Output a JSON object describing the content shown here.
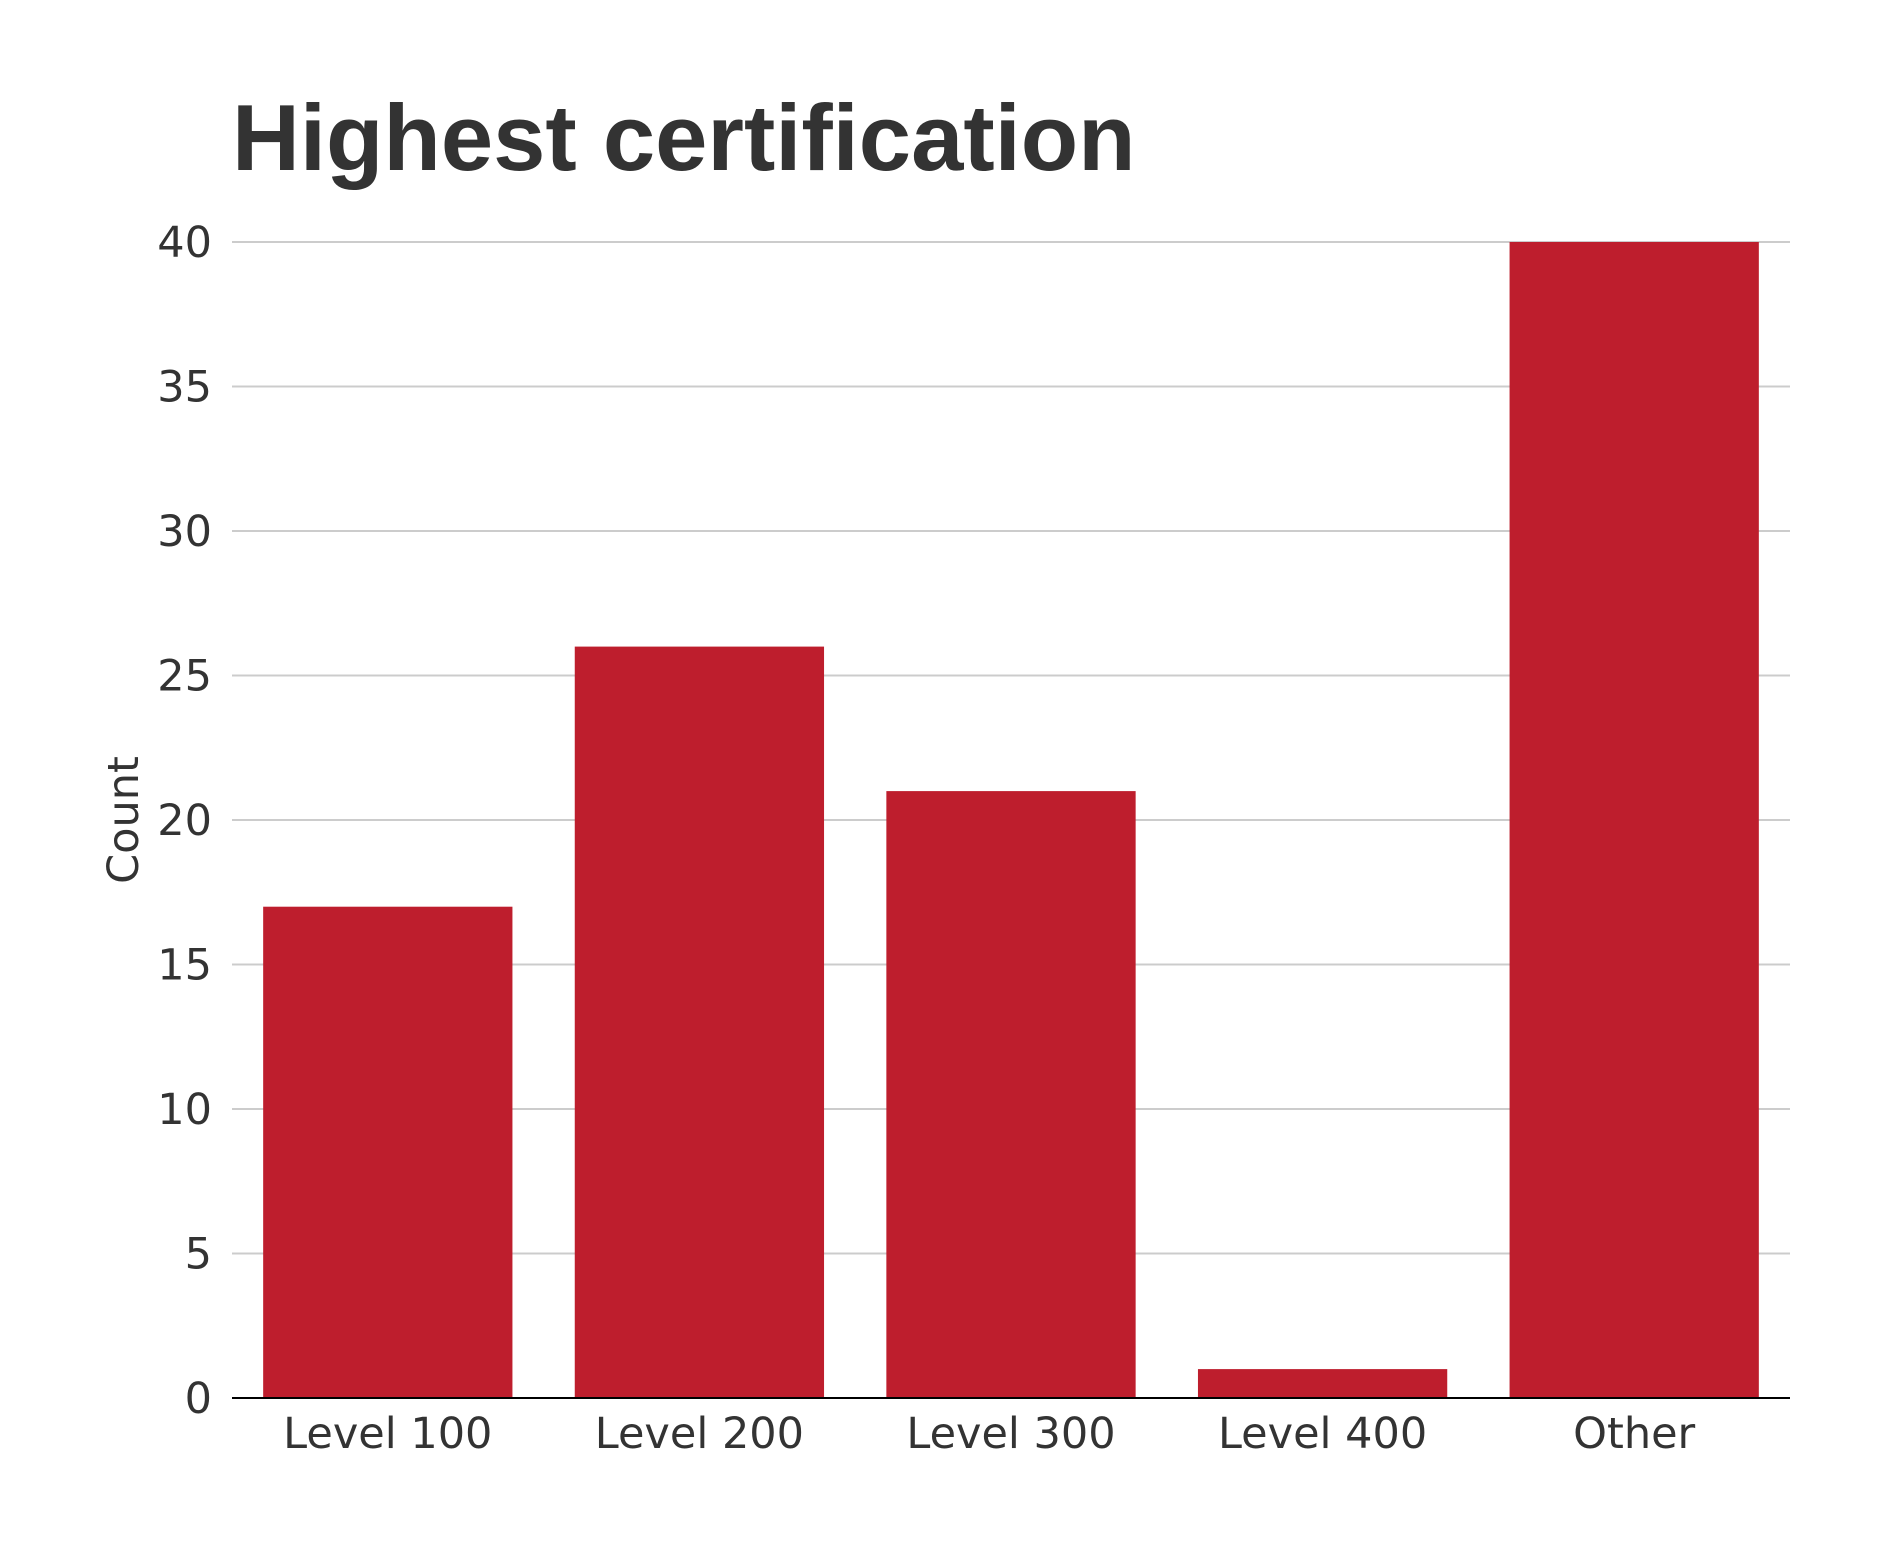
{
  "chart_data": {
    "type": "bar",
    "title": "Highest certification",
    "xlabel": "",
    "ylabel": "Count",
    "categories": [
      "Level 100",
      "Level 200",
      "Level 300",
      "Level 400",
      "Other"
    ],
    "values": [
      17,
      26,
      21,
      1,
      40
    ],
    "ylim": [
      0,
      40
    ],
    "yticks": [
      0,
      5,
      10,
      15,
      20,
      25,
      30,
      35,
      40
    ],
    "grid": true,
    "legend": "none",
    "colors": {
      "bar": "#BE1E2D",
      "text": "#333333",
      "grid": "#cccccc",
      "axis": "#000000"
    }
  }
}
